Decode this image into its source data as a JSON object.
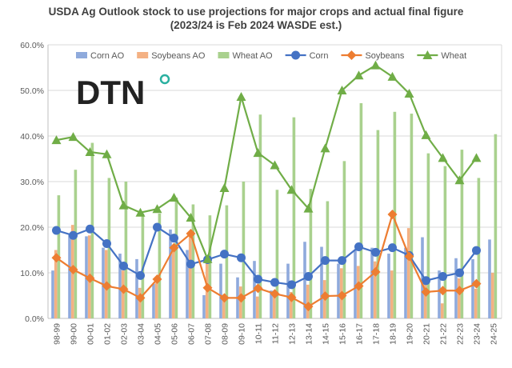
{
  "chart_data": {
    "type": "bar+line",
    "title": "USDA Ag Outlook stock to use projections for major crops and actual final figure",
    "subtitle": "(2023/24 is Feb 2024 WASDE est.)",
    "xlabel": "",
    "ylabel": "",
    "ylim": [
      0,
      60
    ],
    "yticks": [
      "0.0%",
      "10.0%",
      "20.0%",
      "30.0%",
      "40.0%",
      "50.0%",
      "60.0%"
    ],
    "grid": true,
    "legend_position": "top",
    "categories": [
      "98-99",
      "99-00",
      "00-01",
      "01-02",
      "02-03",
      "03-04",
      "04-05",
      "05-06",
      "06-07",
      "07-08",
      "08-09",
      "09-10",
      "10-11",
      "11-12",
      "12-13",
      "13-14",
      "14-15",
      "15-16",
      "16-17",
      "17-18",
      "18-19",
      "19-20",
      "20-21",
      "21-22",
      "22-23",
      "23-24",
      "24-25"
    ],
    "bar_series": [
      {
        "name": "Corn AO",
        "color": "#8faadc",
        "values": [
          10.5,
          18.3,
          18.0,
          15.5,
          14.2,
          13.0,
          7.6,
          19.5,
          15.0,
          5.1,
          12.0,
          9.0,
          12.6,
          6.1,
          12.0,
          16.8,
          15.7,
          12.0,
          15.0,
          15.5,
          14.2,
          15.5,
          17.8,
          10.5,
          13.2,
          13.0,
          17.3
        ]
      },
      {
        "name": "Soybeans AO",
        "color": "#f4b183",
        "values": [
          15.0,
          20.5,
          18.2,
          15.0,
          10.5,
          6.7,
          7.8,
          15.0,
          18.0,
          12.0,
          5.0,
          7.0,
          4.8,
          5.0,
          5.8,
          7.4,
          8.4,
          11.0,
          11.5,
          12.5,
          10.5,
          19.8,
          8.0,
          3.3,
          8.8,
          6.5,
          10.0
        ]
      },
      {
        "name": "Wheat AO",
        "color": "#a9d18e",
        "values": [
          27.0,
          32.6,
          38.5,
          30.8,
          30.0,
          23.0,
          23.0,
          26.5,
          25.0,
          22.6,
          24.8,
          30.0,
          44.7,
          28.2,
          44.1,
          28.4,
          25.7,
          34.5,
          47.2,
          41.3,
          45.3,
          44.9,
          36.2,
          33.4,
          37.0,
          30.8,
          40.4
        ]
      }
    ],
    "line_series": [
      {
        "name": "Corn",
        "color": "#4472c4",
        "marker": "circle",
        "values": [
          19.3,
          18.2,
          19.6,
          16.4,
          11.5,
          9.4,
          20.0,
          17.6,
          11.9,
          12.9,
          14.1,
          13.3,
          8.6,
          7.9,
          7.4,
          9.2,
          12.7,
          12.7,
          15.7,
          14.5,
          15.5,
          13.8,
          8.3,
          9.2,
          10.0,
          14.9
        ]
      },
      {
        "name": "Soybeans",
        "color": "#ed7d31",
        "marker": "diamond",
        "values": [
          13.3,
          10.7,
          8.8,
          7.1,
          6.4,
          4.5,
          8.6,
          15.5,
          18.6,
          6.7,
          4.5,
          4.5,
          6.6,
          5.4,
          4.6,
          2.6,
          4.9,
          5.0,
          7.1,
          10.2,
          22.8,
          13.6,
          5.8,
          6.1,
          6.1,
          7.6
        ]
      },
      {
        "name": "Wheat",
        "color": "#70ad47",
        "marker": "triangle",
        "values": [
          39.1,
          39.8,
          36.5,
          36.0,
          24.8,
          23.2,
          24.0,
          26.5,
          22.1,
          13.0,
          28.6,
          48.6,
          36.3,
          33.6,
          28.2,
          24.1,
          37.3,
          50.0,
          53.3,
          55.5,
          53.0,
          49.3,
          40.2,
          35.2,
          30.3,
          35.2
        ]
      }
    ]
  },
  "logo": {
    "text": "DTN",
    "accent": "#2ab0a0"
  }
}
